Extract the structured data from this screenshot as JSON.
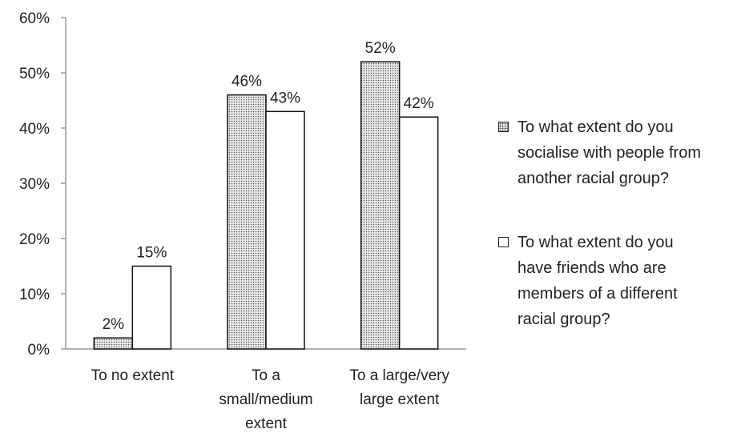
{
  "chart_data": {
    "type": "bar",
    "categories": [
      [
        "To no extent"
      ],
      [
        "To a",
        "small/medium",
        "extent"
      ],
      [
        "To a large/very",
        "large extent"
      ]
    ],
    "series": [
      {
        "name": "To what extent do you socialise with people from another racial group?",
        "legend_lines": [
          "To what extent do you",
          "socialise with people from",
          "another racial group?"
        ],
        "values": [
          2,
          46,
          52
        ],
        "labels": [
          "2%",
          "46%",
          "52%"
        ],
        "fill": "dotted"
      },
      {
        "name": "To what extent do you have friends who are members of a different racial group?",
        "legend_lines": [
          "To what extent do you",
          "have friends who are",
          "members of a different",
          "racial group?"
        ],
        "values": [
          15,
          43,
          42
        ],
        "labels": [
          "15%",
          "43%",
          "42%"
        ],
        "fill": "white"
      }
    ],
    "y_ticks": [
      "0%",
      "10%",
      "20%",
      "30%",
      "40%",
      "50%",
      "60%"
    ],
    "ylim": [
      0,
      60
    ],
    "grid": false,
    "legend_position": "right",
    "colors": {
      "axis": "#999999",
      "bar_outline": "#111111",
      "dotted_bg": "#e9e9e9",
      "dot": "#555555"
    }
  }
}
